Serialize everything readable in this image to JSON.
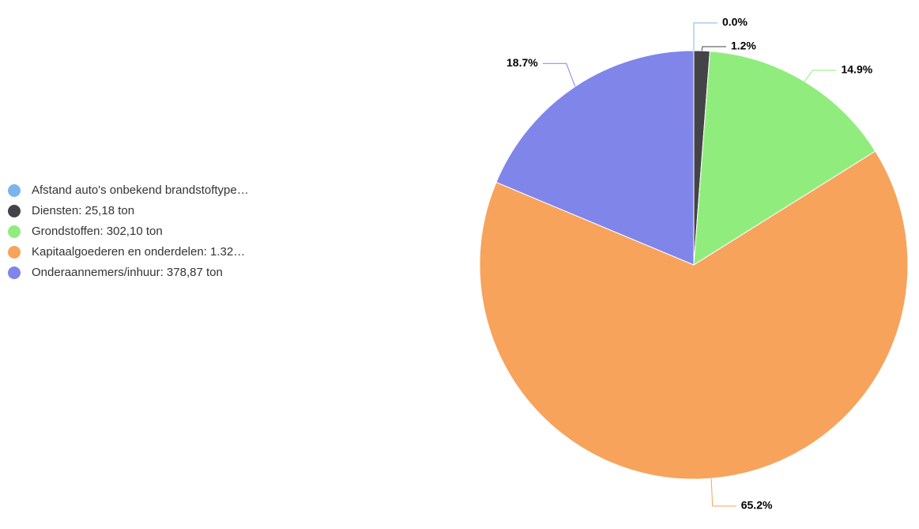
{
  "chart_data": {
    "type": "pie",
    "categories": [
      "Afstand auto's onbekend brandstoftype…",
      "Diensten: 25,18 ton",
      "Grondstoffen: 302,10 ton",
      "Kapitaalgoederen en onderdelen: 1.32…",
      "Onderaannemers/inhuur: 378,87 ton"
    ],
    "values": [
      0,
      1.2,
      14.9,
      65.2,
      18.7
    ],
    "value_labels": [
      "0.0%",
      "1.2%",
      "14.9%",
      "65.2%",
      "18.7%"
    ],
    "colors": [
      "#7cb5ec",
      "#434348",
      "#90ed7d",
      "#f7a35c",
      "#8085e9"
    ],
    "legend": "left"
  }
}
